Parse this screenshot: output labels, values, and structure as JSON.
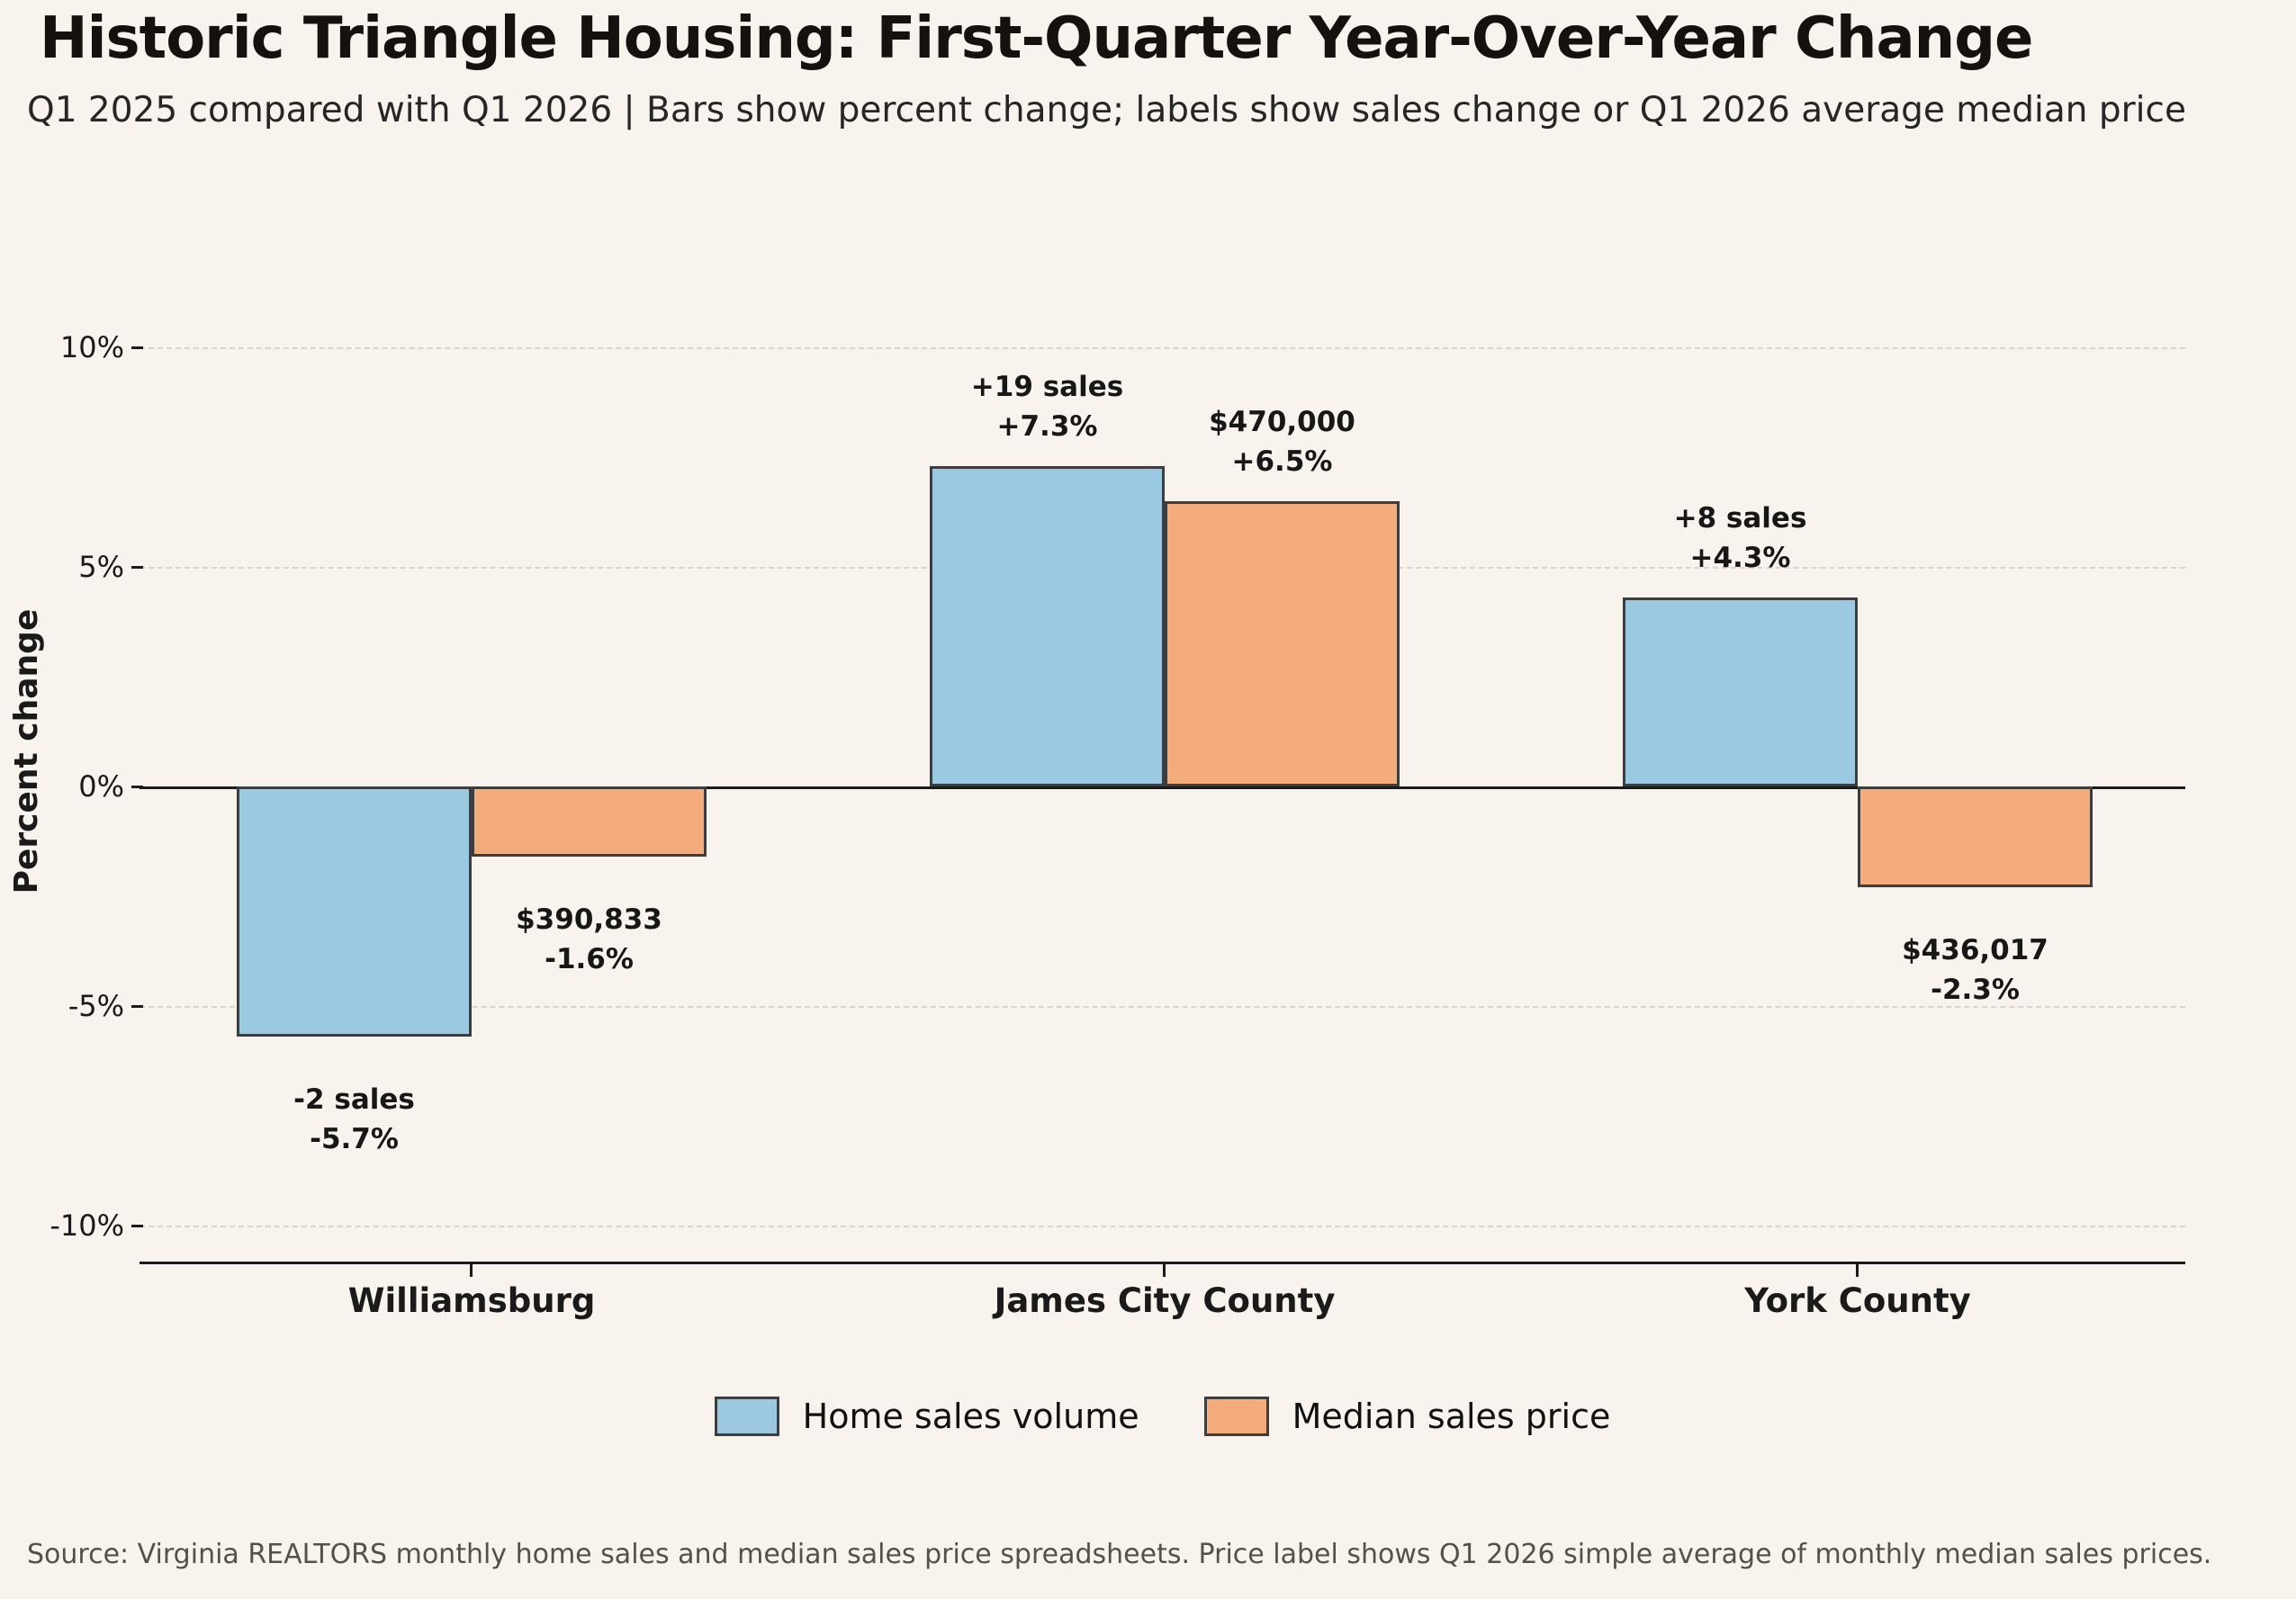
{
  "header": {
    "title": "Historic Triangle Housing: First-Quarter Year-Over-Year Change",
    "subtitle": "Q1 2025 compared with Q1 2026 | Bars show percent change; labels show sales change or Q1 2026 average median price"
  },
  "chart_data": {
    "type": "bar",
    "title": "Historic Triangle Housing: First-Quarter Year-Over-Year Change",
    "subtitle": "Q1 2025 compared with Q1 2026 | Bars show percent change; labels show sales change or Q1 2026 average median price",
    "categories": [
      "Williamsburg",
      "James City County",
      "York County"
    ],
    "series": [
      {
        "name": "Home sales volume",
        "color": "#9cc9e2",
        "values": [
          -5.7,
          7.3,
          4.3
        ],
        "labels": [
          [
            "-2 sales",
            "-5.7%"
          ],
          [
            "+19 sales",
            "+7.3%"
          ],
          [
            "+8 sales",
            "+4.3%"
          ]
        ]
      },
      {
        "name": "Median sales price",
        "color": "#f5ac7d",
        "values": [
          -1.6,
          6.5,
          -2.3
        ],
        "labels": [
          [
            "$390,833",
            "-1.6%"
          ],
          [
            "$470,000",
            "+6.5%"
          ],
          [
            "$436,017",
            "-2.3%"
          ]
        ]
      }
    ],
    "xlabel": "",
    "ylabel": "Percent change",
    "yticks": [
      "10%",
      "5%",
      "0%",
      "-5%",
      "-10%"
    ],
    "ytick_values": [
      10,
      5,
      0,
      -5,
      -10
    ],
    "ylim": [
      -10.8,
      10.8
    ],
    "grid": "horizontal dashed at y ticks, solid line at 0",
    "legend_position": "bottom center",
    "bar_edge_color": "#3d3d3d",
    "background_color": "#f8f3ec"
  },
  "footer": {
    "source": "Source: Virginia REALTORS monthly home sales and median sales price spreadsheets. Price label shows Q1 2026 simple average of monthly median sales prices."
  }
}
